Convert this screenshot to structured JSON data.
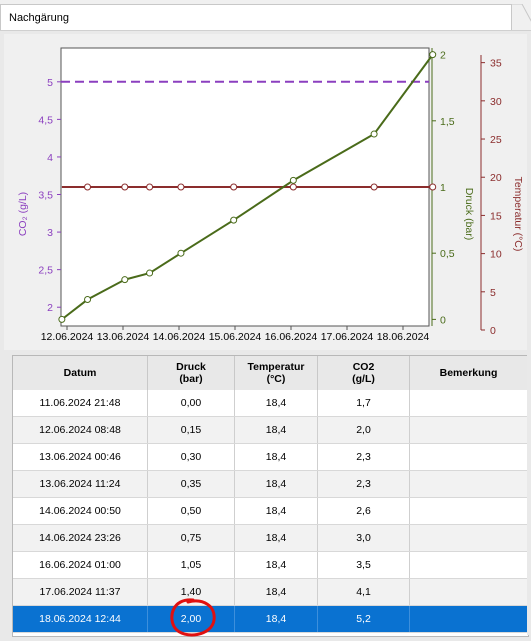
{
  "tab": {
    "label": "Nachgärung"
  },
  "colors": {
    "co2_target": "#8b3fbf",
    "pressure": "#4a6b1a",
    "temperature": "#8b2d2d",
    "selected_row": "#0a72d1",
    "circle": "#e01010"
  },
  "chart_data": {
    "type": "line",
    "x_ticks": [
      "12.06.2024",
      "13.06.2024",
      "14.06.2024",
      "15.06.2024",
      "16.06.2024",
      "17.06.2024",
      "18.06.2024"
    ],
    "axes": {
      "co2": {
        "label": "CO₂ (g/L)",
        "ticks": [
          "2",
          "2,5",
          "3",
          "3,5",
          "4",
          "4,5",
          "5"
        ],
        "range": [
          1.75,
          5.45
        ]
      },
      "pressure": {
        "label": "Druck (bar)",
        "ticks": [
          "0",
          "0,5",
          "1",
          "1,5",
          "2"
        ],
        "range": [
          -0.05,
          2.05
        ]
      },
      "temperature": {
        "label": "Temperatur (°C)",
        "ticks": [
          "0",
          "5",
          "10",
          "15",
          "20",
          "25",
          "30",
          "35"
        ],
        "range": [
          0,
          36
        ]
      }
    },
    "series": [
      {
        "axis": "pressure",
        "x": [
          "11.06.2024 21:48",
          "12.06.2024 08:48",
          "13.06.2024 00:46",
          "13.06.2024 11:24",
          "14.06.2024 00:50",
          "14.06.2024 23:26",
          "16.06.2024 01:00",
          "17.06.2024 11:37",
          "18.06.2024 12:44"
        ],
        "values": [
          0.0,
          0.15,
          0.3,
          0.35,
          0.5,
          0.75,
          1.05,
          1.4,
          2.0
        ]
      },
      {
        "axis": "temperature",
        "x": [
          "11.06.2024 21:48",
          "12.06.2024 08:48",
          "13.06.2024 00:46",
          "13.06.2024 11:24",
          "14.06.2024 00:50",
          "14.06.2024 23:26",
          "16.06.2024 01:00",
          "17.06.2024 11:37",
          "18.06.2024 12:44"
        ],
        "values": [
          18.4,
          18.4,
          18.4,
          18.4,
          18.4,
          18.4,
          18.4,
          18.4,
          18.4
        ]
      },
      {
        "axis": "co2",
        "style": "dashed",
        "values": [
          5.0
        ]
      }
    ]
  },
  "table": {
    "headers": [
      "Datum",
      "Druck\n(bar)",
      "Temperatur\n(°C)",
      "CO2\n(g/L)",
      "Bemerkung"
    ],
    "header_lines": [
      [
        "Datum"
      ],
      [
        "Druck",
        "(bar)"
      ],
      [
        "Temperatur",
        "(°C)"
      ],
      [
        "CO2",
        "(g/L)"
      ],
      [
        "Bemerkung"
      ]
    ],
    "rows": [
      [
        "11.06.2024 21:48",
        "0,00",
        "18,4",
        "1,7",
        ""
      ],
      [
        "12.06.2024 08:48",
        "0,15",
        "18,4",
        "2,0",
        ""
      ],
      [
        "13.06.2024 00:46",
        "0,30",
        "18,4",
        "2,3",
        ""
      ],
      [
        "13.06.2024 11:24",
        "0,35",
        "18,4",
        "2,3",
        ""
      ],
      [
        "14.06.2024 00:50",
        "0,50",
        "18,4",
        "2,6",
        ""
      ],
      [
        "14.06.2024 23:26",
        "0,75",
        "18,4",
        "3,0",
        ""
      ],
      [
        "16.06.2024 01:00",
        "1,05",
        "18,4",
        "3,5",
        ""
      ],
      [
        "17.06.2024 11:37",
        "1,40",
        "18,4",
        "4,1",
        ""
      ],
      [
        "18.06.2024 12:44",
        "2,00",
        "18,4",
        "5,2",
        ""
      ]
    ],
    "selected_index": 8
  }
}
